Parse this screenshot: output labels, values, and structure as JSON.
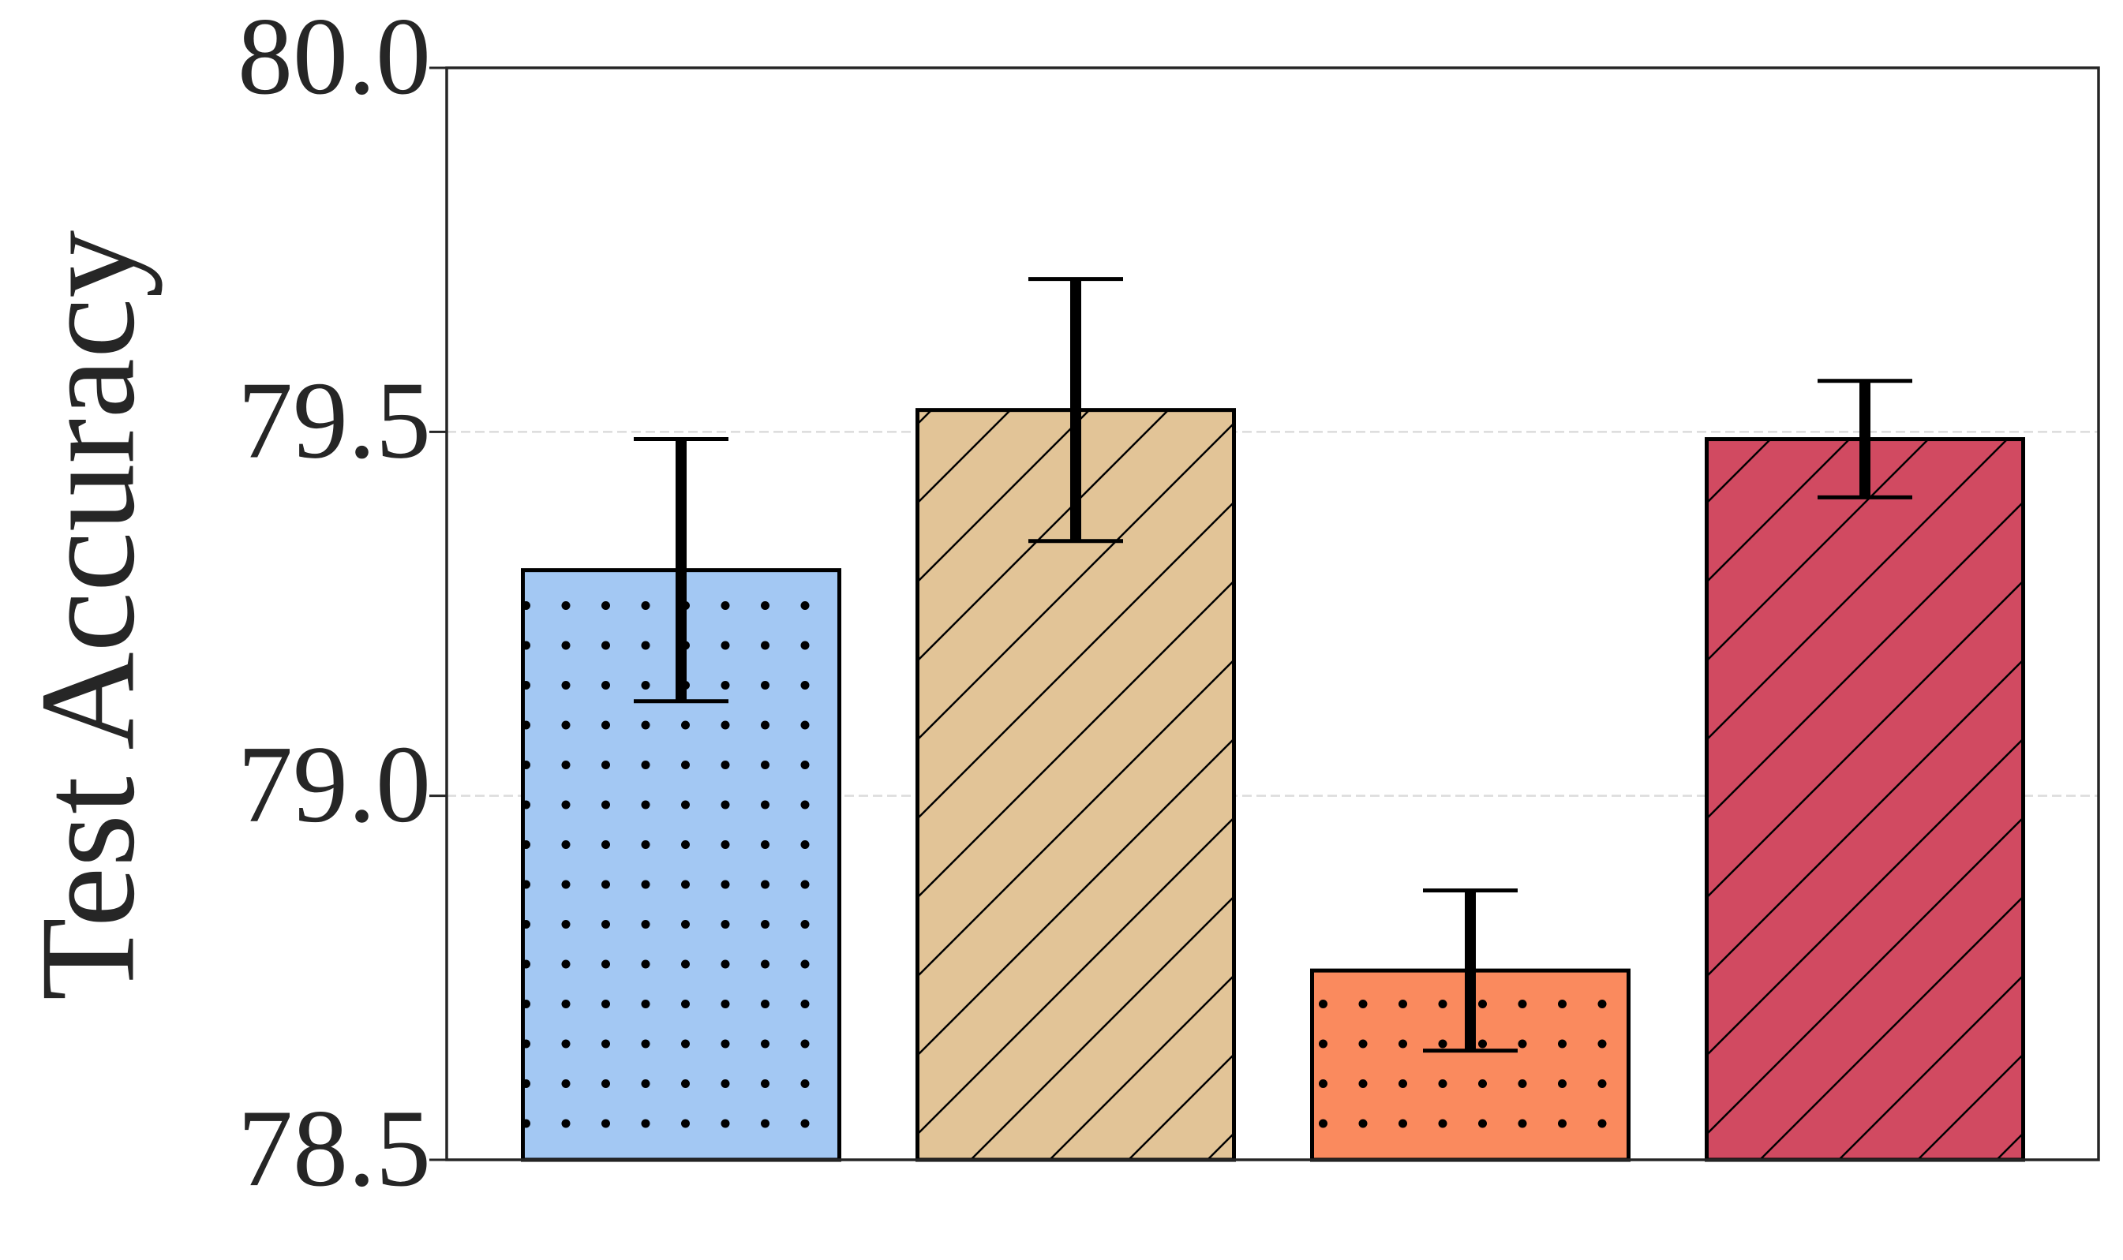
{
  "chart_data": {
    "type": "bar",
    "y_label": "Test Accuracy",
    "categories": [
      null,
      null,
      null,
      null
    ],
    "values": [
      79.31,
      79.53,
      78.76,
      79.49
    ],
    "errors": [
      0.18,
      0.18,
      0.11,
      0.08
    ],
    "colors": [
      "#a3c8f3",
      "#e2c497",
      "#fa8a5e",
      "#d14a61"
    ],
    "hatches": [
      "dots",
      "diagonal",
      "dots",
      "diagonal"
    ],
    "ylim": [
      78.5,
      80.0
    ],
    "yticks": [
      {
        "value": 78.5,
        "label": "78.5"
      },
      {
        "value": 79.0,
        "label": "79.0"
      },
      {
        "value": 79.5,
        "label": "79.5"
      },
      {
        "value": 80.0,
        "label": "80.0"
      }
    ],
    "grid": true
  }
}
